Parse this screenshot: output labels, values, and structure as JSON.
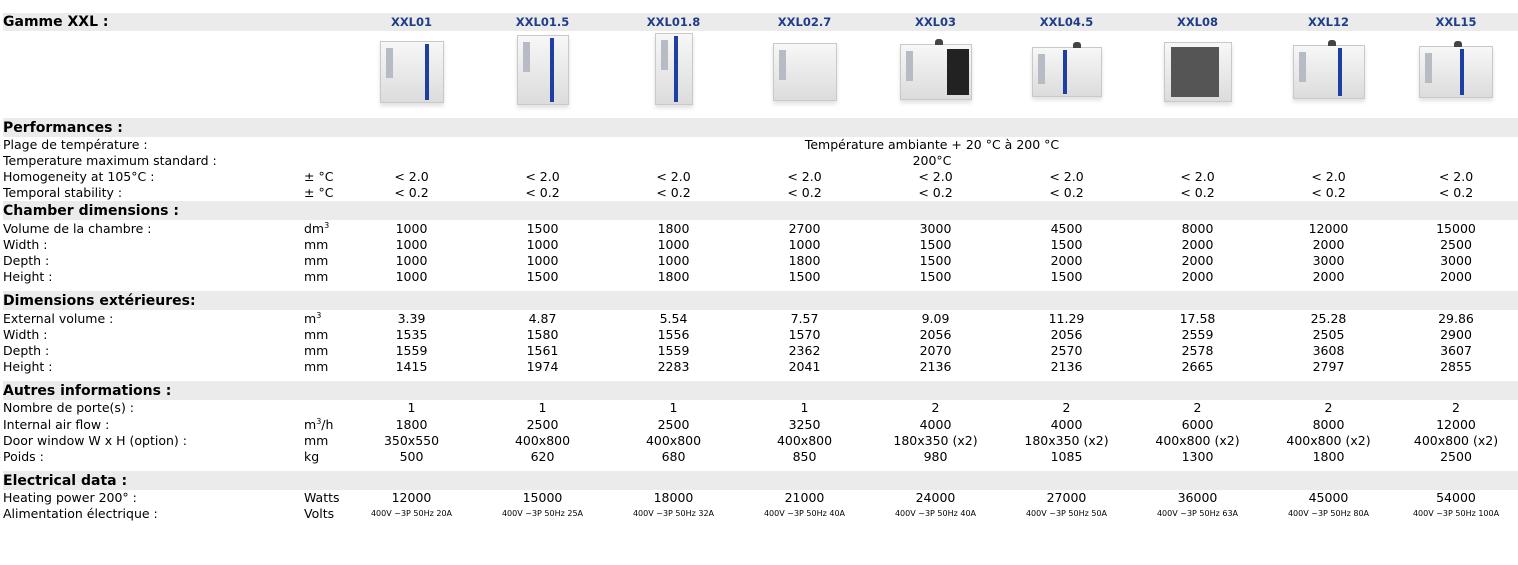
{
  "title": "Gamme XXL :",
  "models": [
    "XXL01",
    "XXL01.5",
    "XXL01.8",
    "XXL02.7",
    "XXL03",
    "XXL04.5",
    "XXL08",
    "XXL12",
    "XXL15"
  ],
  "pictures": [
    {
      "model": "XXL01",
      "icon": "oven-image"
    },
    {
      "model": "XXL01.5",
      "icon": "oven-image"
    },
    {
      "model": "XXL01.8",
      "icon": "oven-image"
    },
    {
      "model": "XXL02.7",
      "icon": "oven-image"
    },
    {
      "model": "XXL03",
      "icon": "oven-open-door-image"
    },
    {
      "model": "XXL04.5",
      "icon": "oven-image"
    },
    {
      "model": "XXL08",
      "icon": "oven-open-door-image"
    },
    {
      "model": "XXL12",
      "icon": "oven-image"
    },
    {
      "model": "XXL15",
      "icon": "oven-image"
    }
  ],
  "colors": {
    "section_bg": "#ebebeb",
    "model_name": "#1f3d8a",
    "door_accent": "#1d3fa3"
  },
  "sections": {
    "performances": {
      "title": "Performances :",
      "temp_range": {
        "label": "Plage de température :",
        "value": "Température ambiante + 20 °C à 200 °C"
      },
      "temp_max": {
        "label": "Temperature maximum standard :",
        "value": "200°C"
      },
      "homogeneity": {
        "label": "Homogeneity at 105°C :",
        "unit": "± °C",
        "values": [
          "< 2.0",
          "< 2.0",
          "< 2.0",
          "< 2.0",
          "< 2.0",
          "< 2.0",
          "< 2.0",
          "< 2.0",
          "< 2.0"
        ]
      },
      "stability": {
        "label": "Temporal stability :",
        "unit": "± °C",
        "values": [
          "< 0.2",
          "< 0.2",
          "< 0.2",
          "< 0.2",
          "< 0.2",
          "< 0.2",
          "< 0.2",
          "< 0.2",
          "< 0.2"
        ]
      }
    },
    "chamber": {
      "title": "Chamber dimensions :",
      "rows": [
        {
          "label": "Volume de la chambre :",
          "unit": "dm",
          "unit_sup": "3",
          "values": [
            "1000",
            "1500",
            "1800",
            "2700",
            "3000",
            "4500",
            "8000",
            "12000",
            "15000"
          ]
        },
        {
          "label": "Width :",
          "unit": "mm",
          "values": [
            "1000",
            "1000",
            "1000",
            "1000",
            "1500",
            "1500",
            "2000",
            "2000",
            "2500"
          ]
        },
        {
          "label": "Depth :",
          "unit": "mm",
          "values": [
            "1000",
            "1000",
            "1000",
            "1800",
            "1500",
            "2000",
            "2000",
            "3000",
            "3000"
          ]
        },
        {
          "label": "Height :",
          "unit": "mm",
          "values": [
            "1000",
            "1500",
            "1800",
            "1500",
            "1500",
            "1500",
            "2000",
            "2000",
            "2000"
          ]
        }
      ]
    },
    "exterior": {
      "title": "Dimensions extérieures:",
      "rows": [
        {
          "label": "External volume :",
          "unit": "m",
          "unit_sup": "3",
          "values": [
            "3.39",
            "4.87",
            "5.54",
            "7.57",
            "9.09",
            "11.29",
            "17.58",
            "25.28",
            "29.86"
          ]
        },
        {
          "label": "Width :",
          "unit": "mm",
          "values": [
            "1535",
            "1580",
            "1556",
            "1570",
            "2056",
            "2056",
            "2559",
            "2505",
            "2900"
          ]
        },
        {
          "label": "Depth :",
          "unit": "mm",
          "values": [
            "1559",
            "1561",
            "1559",
            "2362",
            "2070",
            "2570",
            "2578",
            "3608",
            "3607"
          ]
        },
        {
          "label": "Height :",
          "unit": "mm",
          "values": [
            "1415",
            "1974",
            "2283",
            "2041",
            "2136",
            "2136",
            "2665",
            "2797",
            "2855"
          ]
        }
      ]
    },
    "other": {
      "title": "Autres informations :",
      "rows": [
        {
          "label": "Nombre de porte(s) :",
          "unit": "",
          "values": [
            "1",
            "1",
            "1",
            "1",
            "2",
            "2",
            "2",
            "2",
            "2"
          ]
        },
        {
          "label": "Internal air flow :",
          "unit": "m",
          "unit_sup": "3",
          "unit_post": "/h",
          "values": [
            "1800",
            "2500",
            "2500",
            "3250",
            "4000",
            "4000",
            "6000",
            "8000",
            "12000"
          ]
        },
        {
          "label": "Door window W x H (option) :",
          "unit": "mm",
          "values": [
            "350x550",
            "400x800",
            "400x800",
            "400x800",
            "180x350 (x2)",
            "180x350 (x2)",
            "400x800 (x2)",
            "400x800 (x2)",
            "400x800 (x2)"
          ]
        },
        {
          "label": "Poids :",
          "unit": "kg",
          "values": [
            "500",
            "620",
            "680",
            "850",
            "980",
            "1085",
            "1300",
            "1800",
            "2500"
          ]
        }
      ]
    },
    "electrical": {
      "title": "Electrical data :",
      "rows": [
        {
          "label": "Heating power 200° :",
          "unit": "Watts",
          "values": [
            "12000",
            "15000",
            "18000",
            "21000",
            "24000",
            "27000",
            "36000",
            "45000",
            "54000"
          ]
        },
        {
          "label": "Alimentation électrique :",
          "unit": "Volts",
          "values": [
            "400V ~3P 50Hz 20A",
            "400V ~3P 50Hz 25A",
            "400V ~3P 50Hz 32A",
            "400V ~3P 50Hz 40A",
            "400V ~3P 50Hz 40A",
            "400V ~3P 50Hz 50A",
            "400V ~3P 50Hz 63A",
            "400V ~3P 50Hz 80A",
            "400V ~3P 50Hz 100A"
          ]
        }
      ]
    }
  }
}
